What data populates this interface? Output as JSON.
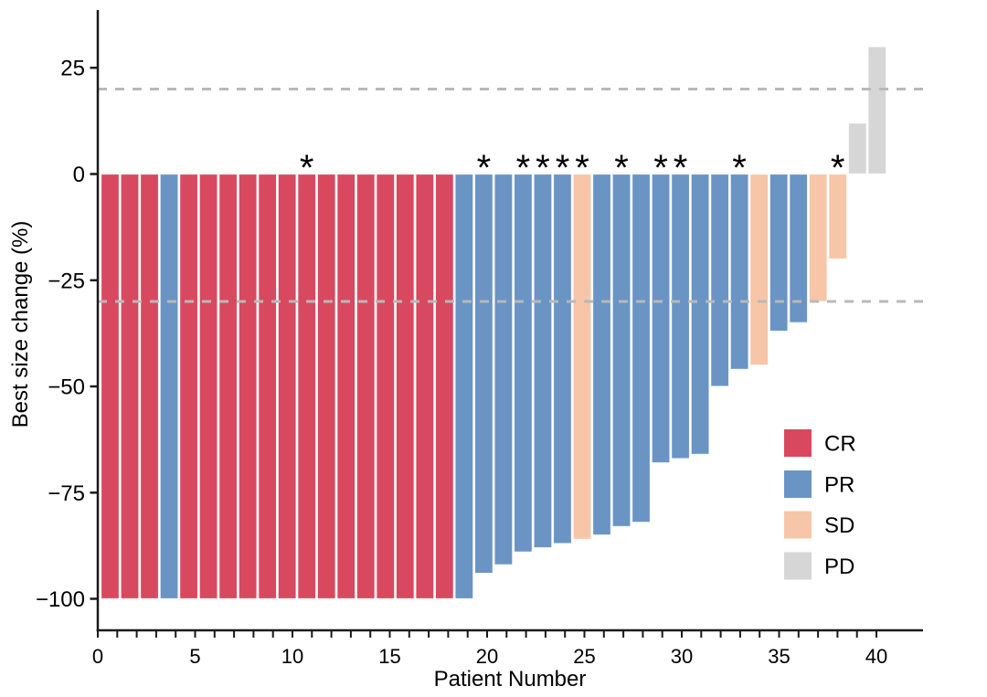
{
  "chart_data": {
    "type": "bar",
    "title": "",
    "xlabel": "Patient Number",
    "ylabel": "Best size change (%)",
    "patients": [
      1,
      2,
      3,
      4,
      5,
      6,
      7,
      8,
      9,
      10,
      11,
      12,
      13,
      14,
      15,
      16,
      17,
      18,
      19,
      20,
      21,
      22,
      23,
      24,
      25,
      26,
      27,
      28,
      29,
      30,
      31,
      32,
      33,
      34,
      35,
      36,
      37,
      38,
      39,
      40
    ],
    "values": [
      -100,
      -100,
      -100,
      -100,
      -100,
      -100,
      -100,
      -100,
      -100,
      -100,
      -100,
      -100,
      -100,
      -100,
      -100,
      -100,
      -100,
      -100,
      -100,
      -94,
      -92,
      -89,
      -88,
      -87,
      -86,
      -85,
      -83,
      -82,
      -68,
      -67,
      -66,
      -50,
      -46,
      -45,
      -37,
      -35,
      -30,
      -20,
      12,
      30
    ],
    "response": [
      "CR",
      "CR",
      "CR",
      "PR",
      "CR",
      "CR",
      "CR",
      "CR",
      "CR",
      "CR",
      "CR",
      "CR",
      "CR",
      "CR",
      "CR",
      "CR",
      "CR",
      "CR",
      "PR",
      "PR",
      "PR",
      "PR",
      "PR",
      "PR",
      "SD",
      "PR",
      "PR",
      "PR",
      "PR",
      "PR",
      "PR",
      "PR",
      "PR",
      "SD",
      "PR",
      "PR",
      "SD",
      "SD",
      "PD",
      "PD"
    ],
    "starred_patients": [
      11,
      20,
      22,
      23,
      24,
      25,
      27,
      29,
      30,
      33,
      38
    ],
    "star_symbol": "*",
    "reference_lines_y": [
      20,
      -30
    ],
    "x_axis": {
      "min": 0,
      "max": 40,
      "minor_tick_step": 1,
      "major_tick_step": 5,
      "major_tick_labels": [
        "0",
        "5",
        "10",
        "15",
        "20",
        "25",
        "30",
        "35",
        "40"
      ]
    },
    "y_axis": {
      "tick_values": [
        25,
        0,
        -25,
        -50,
        -75,
        -100
      ],
      "tick_labels": [
        "25",
        "0",
        "−25",
        "−50",
        "−75",
        "−100"
      ],
      "ylim": [
        -107,
        38
      ]
    },
    "legend": {
      "position": "inside-bottom-right",
      "entries": [
        {
          "label": "CR",
          "color": "#D8495F"
        },
        {
          "label": "PR",
          "color": "#6A94C4"
        },
        {
          "label": "SD",
          "color": "#F7C5A8"
        },
        {
          "label": "PD",
          "color": "#D6D6D6"
        }
      ]
    },
    "colors": {
      "reference_line": "#B9B9B9",
      "axis": "#1A1A1A",
      "background": "#FFFFFF",
      "bar_border": "#FFFFFF"
    }
  }
}
